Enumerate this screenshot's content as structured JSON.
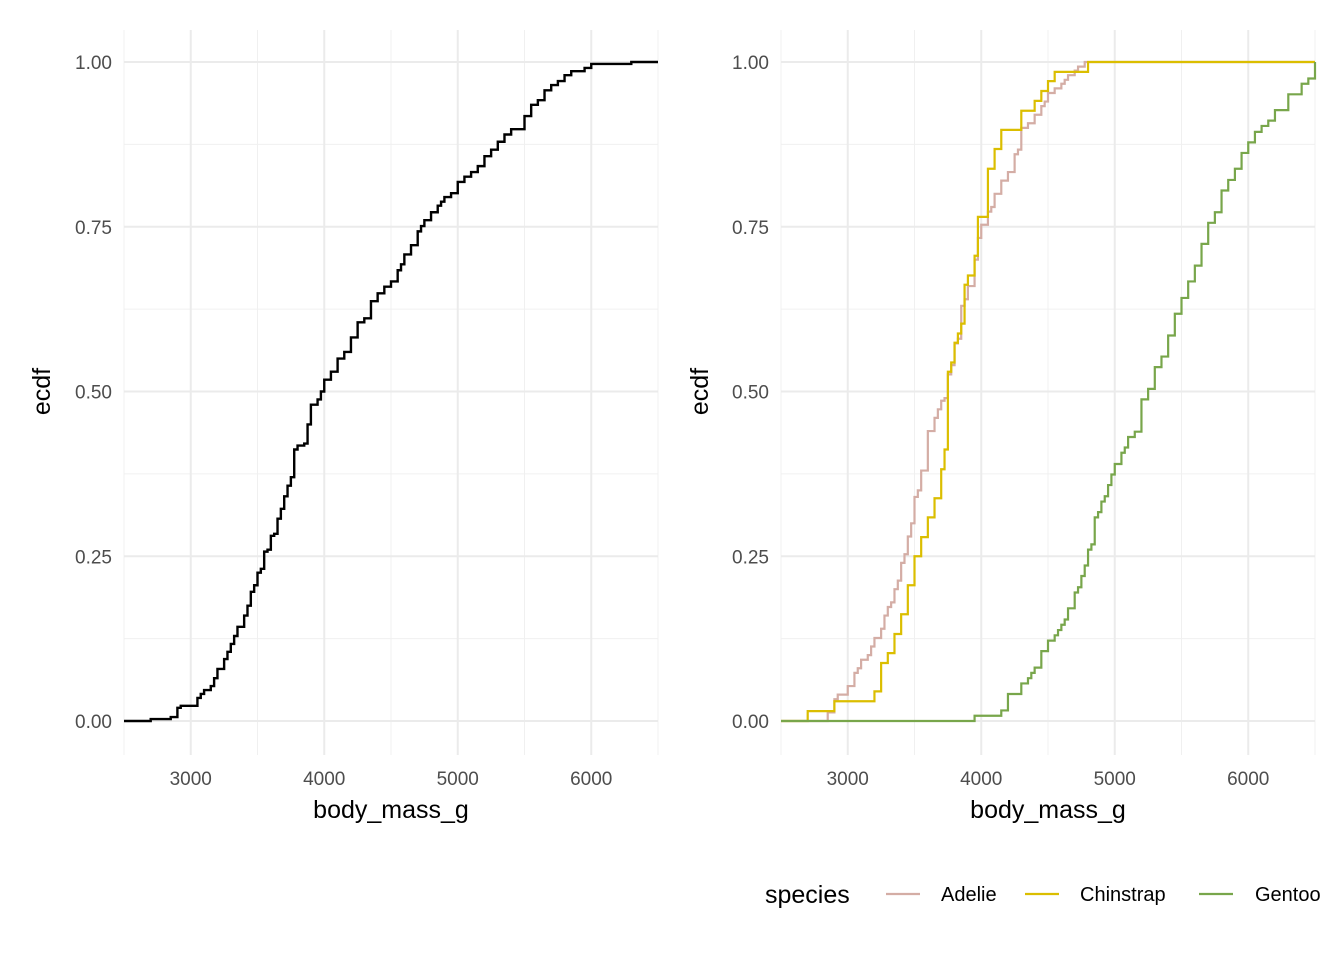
{
  "chart_data": [
    {
      "type": "line",
      "step": true,
      "title": "",
      "xlabel": "body_mass_g",
      "ylabel": "ecdf",
      "xlim": [
        2500,
        6500
      ],
      "ylim": [
        0,
        1
      ],
      "x_ticks": [
        "3000",
        "4000",
        "5000",
        "6000"
      ],
      "x_tick_values": [
        3000,
        4000,
        5000,
        6000
      ],
      "y_ticks": [
        "0.00",
        "0.25",
        "0.50",
        "0.75",
        "1.00"
      ],
      "y_tick_values": [
        0,
        0.25,
        0.5,
        0.75,
        1
      ],
      "grid": true,
      "legend": null,
      "series": [
        {
          "color": "#000000",
          "points": [
            [
              2500,
              0
            ],
            [
              2700,
              0.003
            ],
            [
              2850,
              0.006
            ],
            [
              2900,
              0.02
            ],
            [
              2925,
              0.023
            ],
            [
              3050,
              0.035
            ],
            [
              3075,
              0.041
            ],
            [
              3100,
              0.047
            ],
            [
              3150,
              0.053
            ],
            [
              3175,
              0.065
            ],
            [
              3200,
              0.079
            ],
            [
              3250,
              0.094
            ],
            [
              3275,
              0.105
            ],
            [
              3300,
              0.117
            ],
            [
              3325,
              0.129
            ],
            [
              3350,
              0.143
            ],
            [
              3400,
              0.16
            ],
            [
              3425,
              0.175
            ],
            [
              3450,
              0.196
            ],
            [
              3475,
              0.206
            ],
            [
              3500,
              0.225
            ],
            [
              3525,
              0.231
            ],
            [
              3550,
              0.257
            ],
            [
              3575,
              0.26
            ],
            [
              3600,
              0.281
            ],
            [
              3625,
              0.284
            ],
            [
              3650,
              0.307
            ],
            [
              3675,
              0.322
            ],
            [
              3700,
              0.341
            ],
            [
              3725,
              0.357
            ],
            [
              3750,
              0.37
            ],
            [
              3775,
              0.412
            ],
            [
              3800,
              0.418
            ],
            [
              3850,
              0.421
            ],
            [
              3875,
              0.45
            ],
            [
              3900,
              0.48
            ],
            [
              3950,
              0.488
            ],
            [
              3975,
              0.5
            ],
            [
              4000,
              0.518
            ],
            [
              4050,
              0.53
            ],
            [
              4100,
              0.55
            ],
            [
              4150,
              0.56
            ],
            [
              4200,
              0.582
            ],
            [
              4250,
              0.605
            ],
            [
              4300,
              0.611
            ],
            [
              4350,
              0.637
            ],
            [
              4400,
              0.649
            ],
            [
              4450,
              0.659
            ],
            [
              4500,
              0.667
            ],
            [
              4550,
              0.684
            ],
            [
              4575,
              0.693
            ],
            [
              4600,
              0.708
            ],
            [
              4650,
              0.722
            ],
            [
              4700,
              0.743
            ],
            [
              4725,
              0.751
            ],
            [
              4750,
              0.76
            ],
            [
              4800,
              0.772
            ],
            [
              4850,
              0.782
            ],
            [
              4875,
              0.788
            ],
            [
              4900,
              0.795
            ],
            [
              4950,
              0.801
            ],
            [
              5000,
              0.818
            ],
            [
              5050,
              0.826
            ],
            [
              5100,
              0.833
            ],
            [
              5150,
              0.842
            ],
            [
              5200,
              0.857
            ],
            [
              5250,
              0.867
            ],
            [
              5300,
              0.879
            ],
            [
              5350,
              0.89
            ],
            [
              5400,
              0.898
            ],
            [
              5500,
              0.918
            ],
            [
              5550,
              0.935
            ],
            [
              5600,
              0.942
            ],
            [
              5650,
              0.957
            ],
            [
              5700,
              0.965
            ],
            [
              5750,
              0.971
            ],
            [
              5800,
              0.98
            ],
            [
              5850,
              0.986
            ],
            [
              5950,
              0.991
            ],
            [
              6000,
              0.997
            ],
            [
              6300,
              1
            ],
            [
              6500,
              1
            ]
          ]
        }
      ]
    },
    {
      "type": "line",
      "step": true,
      "title": "",
      "xlabel": "body_mass_g",
      "ylabel": "ecdf",
      "xlim": [
        2500,
        6500
      ],
      "ylim": [
        0,
        1
      ],
      "x_ticks": [
        "3000",
        "4000",
        "5000",
        "6000"
      ],
      "x_tick_values": [
        3000,
        4000,
        5000,
        6000
      ],
      "y_ticks": [
        "0.00",
        "0.25",
        "0.50",
        "0.75",
        "1.00"
      ],
      "y_tick_values": [
        0,
        0.25,
        0.5,
        0.75,
        1
      ],
      "grid": true,
      "legend": "bottom",
      "legend_title": "species",
      "series": [
        {
          "name": "Adelie",
          "color": "#d4ada5",
          "points": [
            [
              2500,
              0
            ],
            [
              2850,
              0.013
            ],
            [
              2900,
              0.033
            ],
            [
              2925,
              0.04
            ],
            [
              3000,
              0.053
            ],
            [
              3050,
              0.073
            ],
            [
              3075,
              0.08
            ],
            [
              3100,
              0.093
            ],
            [
              3150,
              0.1
            ],
            [
              3175,
              0.113
            ],
            [
              3200,
              0.126
            ],
            [
              3250,
              0.14
            ],
            [
              3275,
              0.16
            ],
            [
              3300,
              0.173
            ],
            [
              3325,
              0.18
            ],
            [
              3350,
              0.2
            ],
            [
              3375,
              0.213
            ],
            [
              3400,
              0.24
            ],
            [
              3425,
              0.253
            ],
            [
              3450,
              0.28
            ],
            [
              3475,
              0.3
            ],
            [
              3500,
              0.34
            ],
            [
              3525,
              0.35
            ],
            [
              3550,
              0.38
            ],
            [
              3600,
              0.44
            ],
            [
              3650,
              0.46
            ],
            [
              3675,
              0.473
            ],
            [
              3700,
              0.486
            ],
            [
              3725,
              0.49
            ],
            [
              3750,
              0.526
            ],
            [
              3775,
              0.54
            ],
            [
              3800,
              0.573
            ],
            [
              3825,
              0.58
            ],
            [
              3850,
              0.63
            ],
            [
              3875,
              0.64
            ],
            [
              3900,
              0.66
            ],
            [
              3950,
              0.7
            ],
            [
              3975,
              0.733
            ],
            [
              4000,
              0.753
            ],
            [
              4050,
              0.773
            ],
            [
              4075,
              0.78
            ],
            [
              4100,
              0.8
            ],
            [
              4150,
              0.82
            ],
            [
              4200,
              0.833
            ],
            [
              4250,
              0.86
            ],
            [
              4275,
              0.867
            ],
            [
              4300,
              0.9
            ],
            [
              4350,
              0.907
            ],
            [
              4400,
              0.92
            ],
            [
              4450,
              0.933
            ],
            [
              4475,
              0.94
            ],
            [
              4500,
              0.953
            ],
            [
              4550,
              0.96
            ],
            [
              4600,
              0.967
            ],
            [
              4625,
              0.973
            ],
            [
              4650,
              0.98
            ],
            [
              4700,
              0.987
            ],
            [
              4725,
              0.993
            ],
            [
              4775,
              1
            ],
            [
              6500,
              1
            ]
          ]
        },
        {
          "name": "Chinstrap",
          "color": "#dbbe00",
          "points": [
            [
              2500,
              0
            ],
            [
              2700,
              0.015
            ],
            [
              2900,
              0.03
            ],
            [
              3200,
              0.045
            ],
            [
              3250,
              0.088
            ],
            [
              3300,
              0.103
            ],
            [
              3350,
              0.132
            ],
            [
              3400,
              0.162
            ],
            [
              3450,
              0.206
            ],
            [
              3500,
              0.25
            ],
            [
              3550,
              0.279
            ],
            [
              3600,
              0.309
            ],
            [
              3650,
              0.338
            ],
            [
              3700,
              0.382
            ],
            [
              3725,
              0.412
            ],
            [
              3750,
              0.53
            ],
            [
              3775,
              0.544
            ],
            [
              3800,
              0.574
            ],
            [
              3825,
              0.588
            ],
            [
              3850,
              0.603
            ],
            [
              3875,
              0.662
            ],
            [
              3900,
              0.676
            ],
            [
              3950,
              0.706
            ],
            [
              3975,
              0.765
            ],
            [
              4050,
              0.838
            ],
            [
              4100,
              0.868
            ],
            [
              4150,
              0.897
            ],
            [
              4300,
              0.926
            ],
            [
              4400,
              0.941
            ],
            [
              4450,
              0.956
            ],
            [
              4500,
              0.971
            ],
            [
              4550,
              0.985
            ],
            [
              4800,
              1
            ],
            [
              6500,
              1
            ]
          ]
        },
        {
          "name": "Gentoo",
          "color": "#78a64b",
          "points": [
            [
              2500,
              0
            ],
            [
              3950,
              0.008
            ],
            [
              4150,
              0.016
            ],
            [
              4200,
              0.041
            ],
            [
              4300,
              0.057
            ],
            [
              4350,
              0.065
            ],
            [
              4375,
              0.073
            ],
            [
              4400,
              0.081
            ],
            [
              4450,
              0.106
            ],
            [
              4500,
              0.122
            ],
            [
              4550,
              0.13
            ],
            [
              4575,
              0.138
            ],
            [
              4600,
              0.146
            ],
            [
              4625,
              0.154
            ],
            [
              4650,
              0.171
            ],
            [
              4700,
              0.195
            ],
            [
              4725,
              0.203
            ],
            [
              4750,
              0.22
            ],
            [
              4775,
              0.236
            ],
            [
              4800,
              0.26
            ],
            [
              4825,
              0.268
            ],
            [
              4850,
              0.309
            ],
            [
              4875,
              0.317
            ],
            [
              4900,
              0.333
            ],
            [
              4925,
              0.341
            ],
            [
              4950,
              0.358
            ],
            [
              4975,
              0.374
            ],
            [
              5000,
              0.39
            ],
            [
              5050,
              0.407
            ],
            [
              5075,
              0.415
            ],
            [
              5100,
              0.431
            ],
            [
              5150,
              0.439
            ],
            [
              5200,
              0.488
            ],
            [
              5250,
              0.504
            ],
            [
              5300,
              0.537
            ],
            [
              5350,
              0.553
            ],
            [
              5400,
              0.585
            ],
            [
              5450,
              0.618
            ],
            [
              5500,
              0.642
            ],
            [
              5550,
              0.667
            ],
            [
              5600,
              0.691
            ],
            [
              5650,
              0.724
            ],
            [
              5700,
              0.756
            ],
            [
              5750,
              0.772
            ],
            [
              5800,
              0.805
            ],
            [
              5850,
              0.821
            ],
            [
              5900,
              0.838
            ],
            [
              5950,
              0.862
            ],
            [
              6000,
              0.878
            ],
            [
              6050,
              0.894
            ],
            [
              6100,
              0.903
            ],
            [
              6150,
              0.911
            ],
            [
              6200,
              0.927
            ],
            [
              6300,
              0.951
            ],
            [
              6400,
              0.967
            ],
            [
              6450,
              0.975
            ],
            [
              6500,
              0.992
            ],
            [
              6550,
              1
            ],
            [
              6500,
              1
            ]
          ]
        }
      ]
    }
  ]
}
